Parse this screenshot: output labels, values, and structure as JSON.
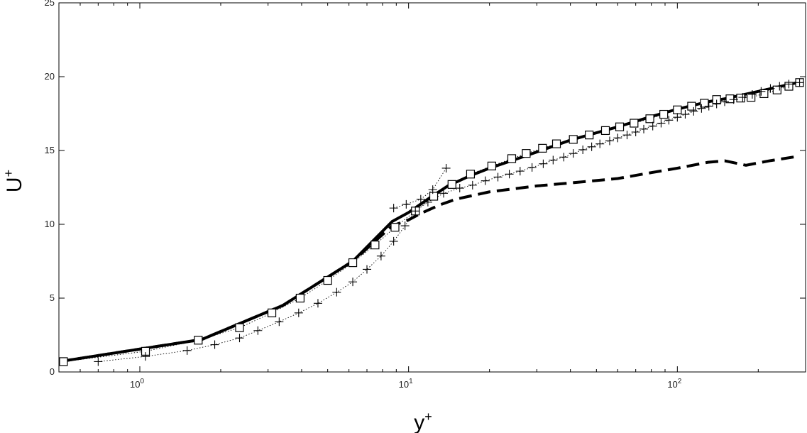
{
  "chart_data": {
    "type": "line",
    "xscale": "log",
    "xlim": [
      0.5,
      300
    ],
    "ylim": [
      0,
      25
    ],
    "grid": false,
    "xlabel": {
      "base": "y",
      "sup": "+"
    },
    "ylabel": {
      "base": "U",
      "sup": "+"
    },
    "x_ticks": [
      {
        "value": 1,
        "mantissa": "10",
        "exponent": "0"
      },
      {
        "value": 10,
        "mantissa": "10",
        "exponent": "1"
      },
      {
        "value": 100,
        "mantissa": "10",
        "exponent": "2"
      }
    ],
    "y_ticks": [
      {
        "value": 0,
        "label": "0"
      },
      {
        "value": 5,
        "label": "5"
      },
      {
        "value": 10,
        "label": "10"
      },
      {
        "value": 15,
        "label": "15"
      },
      {
        "value": 20,
        "label": "20"
      },
      {
        "value": 25,
        "label": "25"
      }
    ],
    "series": [
      {
        "style": "solid-thick",
        "points": [
          [
            0.5,
            0.7
          ],
          [
            1.7,
            2.2
          ],
          [
            3.4,
            4.5
          ],
          [
            6.2,
            7.5
          ],
          [
            8.7,
            10.2
          ],
          [
            10,
            10.8
          ],
          [
            12,
            11.8
          ],
          [
            14,
            12.6
          ],
          [
            17,
            13.3
          ],
          [
            20,
            13.8
          ],
          [
            25,
            14.4
          ],
          [
            30,
            14.9
          ],
          [
            40,
            15.7
          ],
          [
            50,
            16.2
          ],
          [
            60,
            16.6
          ],
          [
            80,
            17.3
          ],
          [
            100,
            17.8
          ],
          [
            130,
            18.3
          ],
          [
            150,
            18.5
          ],
          [
            200,
            19.0
          ],
          [
            280,
            19.6
          ]
        ]
      },
      {
        "style": "dashed-thick",
        "points": [
          [
            0.5,
            0.7
          ],
          [
            1.7,
            2.2
          ],
          [
            3.4,
            4.5
          ],
          [
            6.2,
            7.5
          ],
          [
            8.7,
            9.9
          ],
          [
            10,
            10.3
          ],
          [
            11,
            10.7
          ],
          [
            13,
            11.3
          ],
          [
            15,
            11.7
          ],
          [
            20,
            12.2
          ],
          [
            30,
            12.6
          ],
          [
            40,
            12.8
          ],
          [
            60,
            13.1
          ],
          [
            80,
            13.5
          ],
          [
            100,
            13.8
          ],
          [
            130,
            14.2
          ],
          [
            150,
            14.3
          ],
          [
            180,
            14.0
          ],
          [
            220,
            14.3
          ],
          [
            280,
            14.6
          ]
        ]
      },
      {
        "style": "dotted-squares",
        "marker": "square",
        "points": [
          [
            0.52,
            0.7
          ],
          [
            1.05,
            1.4
          ],
          [
            1.65,
            2.15
          ],
          [
            2.35,
            3.0
          ],
          [
            3.1,
            4.0
          ],
          [
            3.95,
            5.0
          ],
          [
            5.0,
            6.2
          ],
          [
            6.2,
            7.4
          ],
          [
            7.5,
            8.6
          ],
          [
            8.9,
            9.8
          ],
          [
            10.6,
            10.9
          ],
          [
            12.4,
            11.9
          ],
          [
            14.5,
            12.7
          ],
          [
            17.0,
            13.4
          ],
          [
            20.4,
            13.95
          ],
          [
            24.2,
            14.45
          ],
          [
            27.4,
            14.8
          ],
          [
            31.5,
            15.15
          ],
          [
            35.5,
            15.45
          ],
          [
            41,
            15.75
          ],
          [
            47,
            16.05
          ],
          [
            54,
            16.35
          ],
          [
            61,
            16.6
          ],
          [
            69,
            16.85
          ],
          [
            79,
            17.15
          ],
          [
            89,
            17.45
          ],
          [
            100,
            17.75
          ],
          [
            113,
            18.0
          ],
          [
            126,
            18.2
          ],
          [
            140,
            18.45
          ],
          [
            157,
            18.5
          ],
          [
            172,
            18.55
          ],
          [
            188,
            18.6
          ],
          [
            210,
            18.85
          ],
          [
            235,
            19.1
          ],
          [
            260,
            19.35
          ],
          [
            285,
            19.6
          ]
        ]
      },
      {
        "style": "dotted-plus",
        "marker": "plus",
        "points": [
          [
            0.7,
            0.7
          ],
          [
            1.05,
            1.05
          ],
          [
            1.5,
            1.45
          ],
          [
            1.9,
            1.85
          ],
          [
            2.35,
            2.3
          ],
          [
            2.75,
            2.8
          ],
          [
            3.3,
            3.4
          ],
          [
            3.9,
            4.0
          ],
          [
            4.6,
            4.65
          ],
          [
            5.4,
            5.4
          ],
          [
            6.2,
            6.1
          ],
          [
            7.0,
            6.95
          ],
          [
            7.9,
            7.85
          ],
          [
            8.8,
            8.85
          ],
          [
            9.7,
            9.9
          ],
          [
            10.6,
            10.9
          ],
          [
            11.8,
            11.5
          ],
          [
            13.5,
            12.1
          ],
          [
            15.5,
            12.45
          ],
          [
            17.3,
            12.65
          ],
          [
            19.3,
            12.95
          ],
          [
            21.5,
            13.2
          ],
          [
            23.7,
            13.4
          ],
          [
            26.0,
            13.6
          ],
          [
            28.8,
            13.85
          ],
          [
            31.7,
            14.1
          ],
          [
            34.5,
            14.35
          ],
          [
            37.8,
            14.55
          ],
          [
            41,
            14.8
          ],
          [
            44.5,
            15.05
          ],
          [
            48,
            15.25
          ],
          [
            51.5,
            15.45
          ],
          [
            56,
            15.65
          ],
          [
            60,
            15.85
          ],
          [
            65,
            16.05
          ],
          [
            70,
            16.25
          ],
          [
            75,
            16.45
          ],
          [
            81,
            16.65
          ],
          [
            87,
            16.85
          ],
          [
            93,
            17.05
          ],
          [
            100,
            17.25
          ],
          [
            107,
            17.45
          ],
          [
            115,
            17.65
          ],
          [
            123,
            17.85
          ],
          [
            131,
            18.0
          ],
          [
            140,
            18.15
          ],
          [
            150,
            18.3
          ],
          [
            162,
            18.45
          ],
          [
            175,
            18.6
          ],
          [
            190,
            18.8
          ],
          [
            205,
            19.0
          ],
          [
            222,
            19.2
          ],
          [
            240,
            19.35
          ],
          [
            260,
            19.5
          ],
          [
            285,
            19.6
          ]
        ]
      },
      {
        "style": "dotted-plus",
        "marker": "plus",
        "points": [
          [
            8.8,
            11.1
          ],
          [
            9.8,
            11.35
          ],
          [
            11.1,
            11.7
          ],
          [
            12.3,
            12.35
          ],
          [
            13.8,
            13.8
          ]
        ]
      }
    ]
  }
}
